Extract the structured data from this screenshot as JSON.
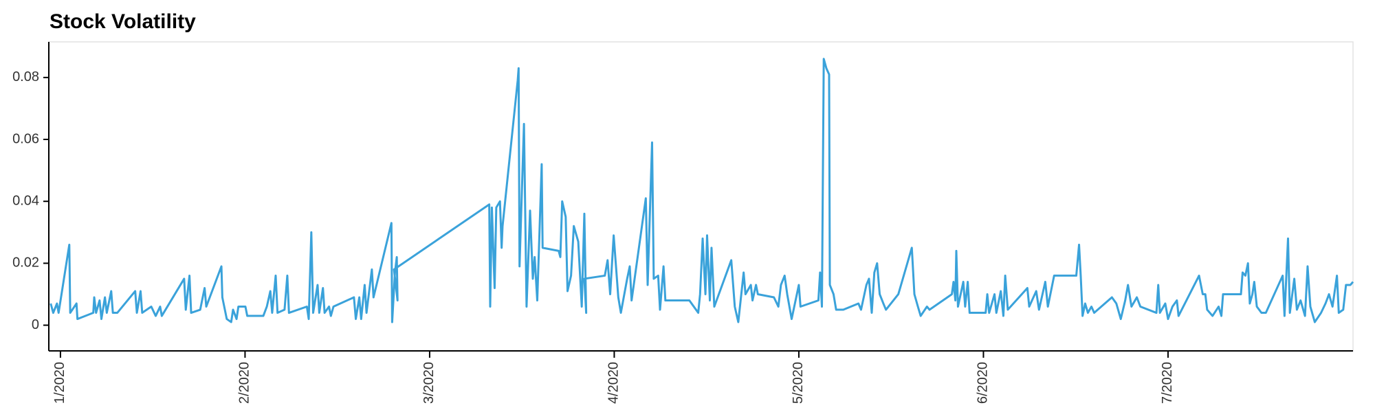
{
  "chart_data": {
    "type": "line",
    "title": "Stock Volatility",
    "color": "#3aa2da",
    "xlim": [
      0.937,
      8.002
    ],
    "ylim": [
      -0.0083,
      0.0915
    ],
    "yticks": [
      0,
      0.02,
      0.04,
      0.06,
      0.08
    ],
    "xticks": [
      {
        "value": 1,
        "label": "1/2020"
      },
      {
        "value": 2,
        "label": "2/2020"
      },
      {
        "value": 3,
        "label": "3/2020"
      },
      {
        "value": 4,
        "label": "4/2020"
      },
      {
        "value": 5,
        "label": "5/2020"
      },
      {
        "value": 6,
        "label": "6/2020"
      },
      {
        "value": 7,
        "label": "7/2020"
      }
    ],
    "x": [
      0.947,
      0.961,
      0.981,
      0.99,
      1.048,
      1.053,
      1.087,
      1.092,
      1.178,
      1.183,
      1.193,
      1.212,
      1.222,
      1.241,
      1.251,
      1.275,
      1.284,
      1.308,
      1.405,
      1.414,
      1.434,
      1.443,
      1.492,
      1.516,
      1.54,
      1.549,
      1.67,
      1.679,
      1.699,
      1.708,
      1.757,
      1.781,
      1.79,
      1.872,
      1.877,
      1.901,
      1.925,
      1.935,
      1.954,
      1.964,
      2.002,
      2.012,
      2.099,
      2.118,
      2.137,
      2.147,
      2.166,
      2.176,
      2.214,
      2.229,
      2.238,
      2.335,
      2.345,
      2.359,
      2.369,
      2.393,
      2.402,
      2.422,
      2.431,
      2.455,
      2.465,
      2.479,
      2.59,
      2.6,
      2.619,
      2.629,
      2.648,
      2.658,
      2.687,
      2.696,
      2.793,
      2.797,
      2.812,
      2.822,
      2.826,
      2.807,
      3.323,
      3.328,
      3.337,
      3.352,
      3.361,
      3.381,
      3.39,
      3.395,
      3.477,
      3.482,
      3.487,
      3.511,
      3.525,
      3.544,
      3.559,
      3.569,
      3.583,
      3.607,
      3.612,
      3.699,
      3.708,
      3.718,
      3.737,
      3.747,
      3.766,
      3.781,
      3.805,
      3.824,
      3.838,
      3.848,
      3.838,
      3.949,
      3.964,
      3.978,
      3.997,
      4.022,
      4.036,
      4.07,
      4.084,
      4.094,
      4.171,
      4.181,
      4.205,
      4.214,
      4.238,
      4.248,
      4.267,
      4.277,
      4.407,
      4.455,
      4.465,
      4.479,
      4.494,
      4.503,
      4.518,
      4.527,
      4.542,
      4.634,
      4.653,
      4.672,
      4.701,
      4.711,
      4.74,
      4.749,
      4.768,
      4.778,
      4.865,
      4.889,
      4.903,
      4.923,
      4.937,
      4.961,
      5.0,
      5.009,
      5.106,
      5.115,
      5.125,
      5.135,
      5.149,
      5.164,
      5.168,
      5.188,
      5.202,
      5.241,
      5.323,
      5.337,
      5.366,
      5.38,
      5.395,
      5.409,
      5.424,
      5.438,
      5.458,
      5.472,
      5.539,
      5.612,
      5.626,
      5.645,
      5.66,
      5.694,
      5.708,
      5.829,
      5.838,
      5.848,
      5.853,
      5.862,
      5.891,
      5.901,
      5.915,
      5.925,
      6.012,
      6.021,
      6.031,
      6.06,
      6.07,
      6.094,
      6.108,
      6.118,
      6.132,
      6.238,
      6.248,
      6.286,
      6.301,
      6.335,
      6.349,
      6.383,
      6.503,
      6.518,
      6.527,
      6.537,
      6.551,
      6.566,
      6.585,
      6.6,
      6.696,
      6.72,
      6.744,
      6.768,
      6.783,
      6.802,
      6.831,
      6.85,
      6.937,
      6.947,
      6.956,
      6.985,
      7.0,
      7.024,
      7.048,
      7.057,
      7.168,
      7.188,
      7.202,
      7.212,
      7.241,
      7.274,
      7.289,
      7.298,
      7.395,
      7.404,
      7.419,
      7.433,
      7.443,
      7.457,
      7.467,
      7.481,
      7.506,
      7.53,
      7.621,
      7.631,
      7.65,
      7.66,
      7.684,
      7.698,
      7.718,
      7.742,
      7.756,
      7.771,
      7.795,
      7.829,
      7.853,
      7.872,
      7.891,
      7.915,
      7.925,
      7.949,
      7.964,
      7.988,
      8.002
    ],
    "values": [
      0.007,
      0.004,
      0.007,
      0.004,
      0.026,
      0.004,
      0.007,
      0.002,
      0.004,
      0.009,
      0.004,
      0.008,
      0.002,
      0.009,
      0.004,
      0.011,
      0.004,
      0.004,
      0.011,
      0.004,
      0.011,
      0.004,
      0.006,
      0.003,
      0.006,
      0.003,
      0.015,
      0.005,
      0.016,
      0.004,
      0.005,
      0.012,
      0.006,
      0.019,
      0.009,
      0.002,
      0.001,
      0.005,
      0.002,
      0.006,
      0.006,
      0.003,
      0.003,
      0.006,
      0.011,
      0.004,
      0.016,
      0.004,
      0.005,
      0.016,
      0.004,
      0.006,
      0.002,
      0.03,
      0.004,
      0.013,
      0.004,
      0.012,
      0.004,
      0.006,
      0.003,
      0.006,
      0.009,
      0.002,
      0.009,
      0.002,
      0.013,
      0.004,
      0.018,
      0.009,
      0.033,
      0.001,
      0.017,
      0.022,
      0.008,
      0.018,
      0.039,
      0.006,
      0.038,
      0.012,
      0.038,
      0.04,
      0.025,
      0.032,
      0.079,
      0.083,
      0.019,
      0.065,
      0.006,
      0.037,
      0.015,
      0.022,
      0.008,
      0.052,
      0.025,
      0.024,
      0.022,
      0.04,
      0.035,
      0.011,
      0.016,
      0.032,
      0.027,
      0.006,
      0.036,
      0.004,
      0.015,
      0.016,
      0.021,
      0.01,
      0.029,
      0.009,
      0.004,
      0.015,
      0.019,
      0.008,
      0.041,
      0.013,
      0.059,
      0.015,
      0.016,
      0.005,
      0.019,
      0.008,
      0.008,
      0.004,
      0.01,
      0.028,
      0.01,
      0.029,
      0.008,
      0.025,
      0.006,
      0.021,
      0.006,
      0.001,
      0.017,
      0.01,
      0.013,
      0.008,
      0.013,
      0.01,
      0.009,
      0.006,
      0.013,
      0.016,
      0.01,
      0.002,
      0.013,
      0.006,
      0.008,
      0.017,
      0.006,
      0.086,
      0.083,
      0.081,
      0.013,
      0.01,
      0.005,
      0.005,
      0.007,
      0.005,
      0.013,
      0.015,
      0.004,
      0.017,
      0.02,
      0.01,
      0.007,
      0.005,
      0.01,
      0.025,
      0.01,
      0.006,
      0.003,
      0.006,
      0.005,
      0.01,
      0.014,
      0.008,
      0.024,
      0.006,
      0.014,
      0.006,
      0.014,
      0.004,
      0.004,
      0.01,
      0.004,
      0.01,
      0.004,
      0.011,
      0.003,
      0.016,
      0.005,
      0.012,
      0.006,
      0.011,
      0.005,
      0.014,
      0.006,
      0.016,
      0.016,
      0.026,
      0.016,
      0.003,
      0.007,
      0.004,
      0.006,
      0.004,
      0.009,
      0.007,
      0.002,
      0.008,
      0.013,
      0.006,
      0.009,
      0.006,
      0.004,
      0.013,
      0.004,
      0.007,
      0.002,
      0.006,
      0.008,
      0.003,
      0.016,
      0.01,
      0.01,
      0.005,
      0.003,
      0.006,
      0.003,
      0.01,
      0.01,
      0.017,
      0.016,
      0.02,
      0.007,
      0.01,
      0.014,
      0.006,
      0.004,
      0.004,
      0.016,
      0.003,
      0.028,
      0.004,
      0.015,
      0.005,
      0.008,
      0.003,
      0.019,
      0.006,
      0.001,
      0.004,
      0.007,
      0.01,
      0.006,
      0.016,
      0.004,
      0.005,
      0.013,
      0.013,
      0.014
    ]
  }
}
